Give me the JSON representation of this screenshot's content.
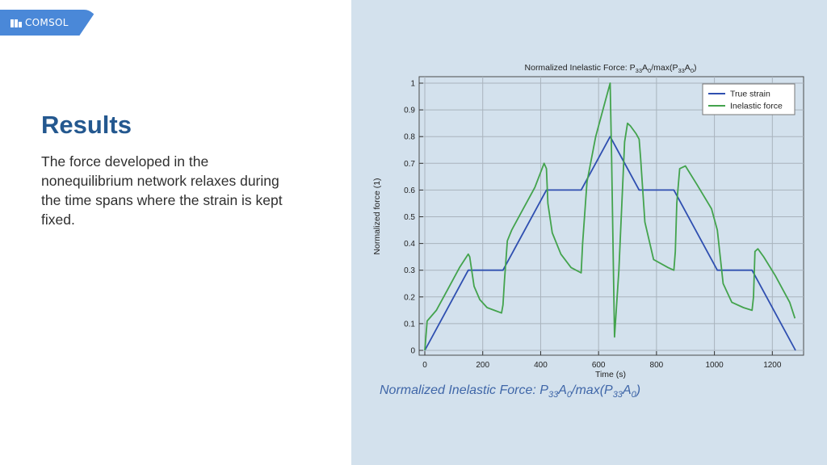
{
  "brand": {
    "logo_text": "COMSOL",
    "accent": "#4a88d8"
  },
  "slide": {
    "title": "Results",
    "body": "The force developed in the nonequilibrium network relaxes during the time spans where the strain is kept fixed."
  },
  "caption": {
    "prefix": "Normalized Inelastic Force: P",
    "sub1": "33",
    "mid1": "A",
    "sub2": "0",
    "mid2": "/max(P",
    "sub3": "33",
    "mid3": "A",
    "sub4": "0",
    "suffix": ")"
  },
  "chart_data": {
    "type": "line",
    "title": {
      "prefix": "Normalized Inelastic Force: P",
      "sub1": "33",
      "mid1": "A",
      "sub2": "0",
      "mid2": "/max(P",
      "sub3": "33",
      "mid3": "A",
      "sub4": "0",
      "suffix": ")"
    },
    "xlabel": "Time (s)",
    "ylabel": "Normalized force (1)",
    "xlim": [
      0,
      1300
    ],
    "ylim": [
      0,
      1
    ],
    "xticks": [
      0,
      200,
      400,
      600,
      800,
      1000,
      1200
    ],
    "yticks": [
      0,
      0.1,
      0.2,
      0.3,
      0.4,
      0.5,
      0.6,
      0.7,
      0.8,
      0.9,
      1
    ],
    "grid": true,
    "legend_position": "top-right",
    "series": [
      {
        "name": "True strain",
        "color": "#2f4fb0",
        "x": [
          0,
          150,
          270,
          420,
          540,
          640,
          740,
          860,
          1010,
          1130,
          1280
        ],
        "y": [
          0,
          0.3,
          0.3,
          0.6,
          0.6,
          0.8,
          0.6,
          0.6,
          0.3,
          0.3,
          0
        ]
      },
      {
        "name": "Inelastic force",
        "color": "#43a34d",
        "x": [
          0,
          8,
          40,
          80,
          120,
          150,
          155,
          170,
          190,
          215,
          240,
          265,
          270,
          275,
          285,
          300,
          340,
          380,
          412,
          420,
          425,
          440,
          470,
          505,
          540,
          545,
          560,
          590,
          620,
          640,
          645,
          655,
          670,
          690,
          700,
          710,
          730,
          740,
          745,
          760,
          790,
          840,
          860,
          865,
          870,
          880,
          900,
          940,
          990,
          1010,
          1020,
          1030,
          1060,
          1100,
          1130,
          1135,
          1140,
          1150,
          1170,
          1210,
          1260,
          1278
        ],
        "y": [
          0,
          0.11,
          0.15,
          0.23,
          0.31,
          0.36,
          0.35,
          0.24,
          0.19,
          0.16,
          0.15,
          0.14,
          0.17,
          0.26,
          0.41,
          0.45,
          0.53,
          0.61,
          0.7,
          0.68,
          0.55,
          0.44,
          0.36,
          0.31,
          0.29,
          0.4,
          0.63,
          0.8,
          0.92,
          1.0,
          0.72,
          0.05,
          0.3,
          0.78,
          0.85,
          0.84,
          0.81,
          0.79,
          0.72,
          0.48,
          0.34,
          0.31,
          0.3,
          0.37,
          0.55,
          0.68,
          0.69,
          0.62,
          0.53,
          0.45,
          0.35,
          0.25,
          0.18,
          0.16,
          0.15,
          0.2,
          0.37,
          0.38,
          0.35,
          0.28,
          0.18,
          0.12
        ]
      }
    ]
  }
}
